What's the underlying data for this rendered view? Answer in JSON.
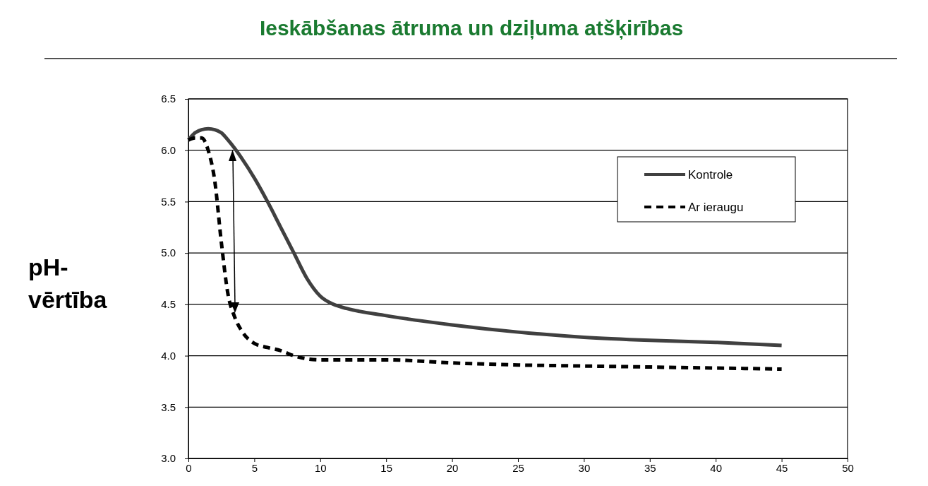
{
  "chart_data": {
    "type": "line",
    "title": "Ieskābšanas ātruma un dziļuma atšķirības",
    "ylabel": "pH-vērtība",
    "xlim": [
      0,
      50
    ],
    "xticks": [
      0,
      5,
      10,
      15,
      20,
      25,
      30,
      35,
      40,
      45,
      50
    ],
    "ylim": [
      3.0,
      6.5
    ],
    "yticks": [
      {
        "value": 3.0,
        "label": "3.0"
      },
      {
        "value": 3.5,
        "label": "3.5"
      },
      {
        "value": 4.0,
        "label": "4.0"
      },
      {
        "value": 4.5,
        "label": "4.5"
      },
      {
        "value": 5.0,
        "label": "5.0"
      },
      {
        "value": 5.5,
        "label": "5.5"
      },
      {
        "value": 6.0,
        "label": "6.0"
      },
      {
        "value": 6.5,
        "label": "6.5"
      }
    ],
    "grid": "y",
    "legend": "top right",
    "series": [
      {
        "name": "Kontrole",
        "color": "#404040",
        "line_style": "solid",
        "x": [
          0,
          0.5,
          1,
          1.5,
          2,
          2.5,
          3,
          3.5,
          4,
          5,
          6,
          7,
          8,
          9,
          10,
          11,
          12,
          15,
          20,
          25,
          30,
          35,
          40,
          45
        ],
        "values": [
          6.1,
          6.17,
          6.2,
          6.21,
          6.2,
          6.17,
          6.1,
          6.02,
          5.93,
          5.73,
          5.5,
          5.25,
          5.0,
          4.75,
          4.58,
          4.5,
          4.46,
          4.39,
          4.3,
          4.23,
          4.18,
          4.15,
          4.13,
          4.1
        ]
      },
      {
        "name": "Ar ieraugu",
        "color": "#000000",
        "line_style": "dashed",
        "x": [
          0,
          0.5,
          1,
          1.5,
          2,
          2.5,
          3,
          3.5,
          4,
          5,
          6,
          7,
          8,
          10,
          12,
          15,
          20,
          25,
          30,
          35,
          40,
          45
        ],
        "values": [
          6.1,
          6.12,
          6.12,
          6.0,
          5.7,
          5.1,
          4.6,
          4.38,
          4.25,
          4.12,
          4.08,
          4.05,
          4.0,
          3.96,
          3.96,
          3.96,
          3.93,
          3.91,
          3.9,
          3.89,
          3.88,
          3.87
        ]
      }
    ]
  }
}
